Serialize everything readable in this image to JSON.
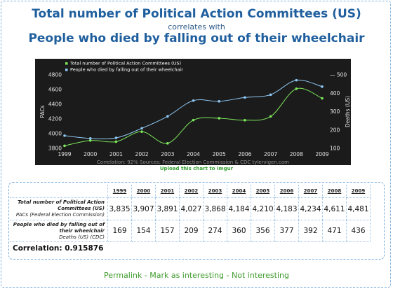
{
  "header": {
    "title_a": "Total number of Political Action Committees (US)",
    "connector": "correlates with",
    "title_b": "People who died by falling out of their wheelchair"
  },
  "chart_data": {
    "type": "line",
    "x": [
      1999,
      2000,
      2001,
      2002,
      2003,
      2004,
      2005,
      2006,
      2007,
      2008,
      2009
    ],
    "series": [
      {
        "name": "Total number of Political Action Committees (US)",
        "axis": "left",
        "color": "#7ee85a",
        "values": [
          3835,
          3907,
          3891,
          4027,
          3868,
          4184,
          4210,
          4183,
          4234,
          4611,
          4481
        ]
      },
      {
        "name": "People who died by falling out of their wheelchair",
        "axis": "right",
        "color": "#8fc8f4",
        "values": [
          169,
          154,
          157,
          209,
          274,
          360,
          356,
          377,
          392,
          471,
          436
        ]
      }
    ],
    "ylabel_left": "PACs",
    "ylabel_right": "Deaths (US)",
    "ylim_left": [
      3800,
      4800
    ],
    "ylim_right": [
      100,
      500
    ],
    "yticks_left": [
      3800,
      4000,
      4200,
      4400,
      4600,
      4800
    ],
    "yticks_right": [
      100,
      200,
      300,
      400,
      500
    ],
    "yticks_right_labels": [
      "100",
      "200",
      "300",
      "400",
      "— 500"
    ],
    "source_note": "Correlation: 92%   Sources: Federal Election Commission & CDC   tylervigen.com",
    "legend_position": "top-left",
    "grid": false,
    "background": "#1b1b1b"
  },
  "upload_link": "Upload this chart to imgur",
  "table": {
    "years": [
      "1999",
      "2000",
      "2001",
      "2002",
      "2003",
      "2004",
      "2005",
      "2006",
      "2007",
      "2008",
      "2009"
    ],
    "rows": [
      {
        "label": "Total number of Political Action Committees (US)",
        "sublabel": "PACs (Federal Election Commission)",
        "values": [
          "3,835",
          "3,907",
          "3,891",
          "4,027",
          "3,868",
          "4,184",
          "4,210",
          "4,183",
          "4,234",
          "4,611",
          "4,481"
        ]
      },
      {
        "label": "People who died by falling out of their wheelchair",
        "sublabel": "Deaths (US) (CDC)",
        "values": [
          "169",
          "154",
          "157",
          "209",
          "274",
          "360",
          "356",
          "377",
          "392",
          "471",
          "436"
        ]
      }
    ],
    "correlation": "Correlation: 0.915876"
  },
  "footer": {
    "permalink": "Permalink",
    "separator": " - ",
    "mark": "Mark as interesting",
    "not": "Not interesting"
  }
}
